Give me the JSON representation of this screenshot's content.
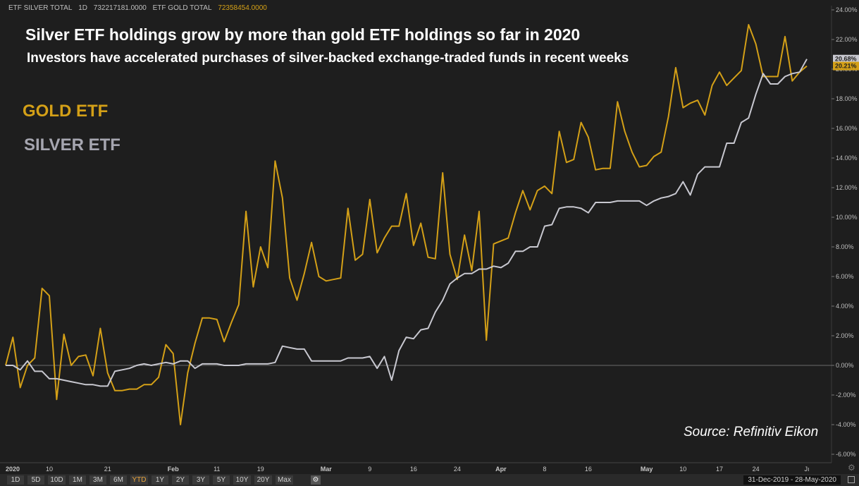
{
  "header": {
    "silver_label": "ETF SILVER TOTAL",
    "interval": "1D",
    "silver_value": "732217181.0000",
    "gold_label": "ETF GOLD TOTAL",
    "gold_value": "72358454.0000"
  },
  "chart_data": {
    "type": "line",
    "title": "Silver ETF holdings grow by more than gold ETF holdings so far in 2020",
    "subtitle": "Investors have accelerated purchases of silver-backed exchange-traded funds in recent weeks",
    "source": "Source: Refinitiv Eikon",
    "ylim": [
      -6,
      24
    ],
    "y_ticks": [
      "24.00%",
      "22.00%",
      "20.00%",
      "18.00%",
      "16.00%",
      "14.00%",
      "12.00%",
      "10.00%",
      "8.00%",
      "6.00%",
      "4.00%",
      "2.00%",
      "0.00%",
      "-2.00%",
      "-4.00%",
      "-6.00%"
    ],
    "x_ticks": [
      "2020",
      "10",
      "21",
      "Feb",
      "11",
      "19",
      "Mar",
      "9",
      "16",
      "24",
      "Apr",
      "8",
      "16",
      "May",
      "10",
      "17",
      "24",
      "Jı"
    ],
    "grid": false,
    "legend": [
      "GOLD ETF",
      "SILVER ETF"
    ],
    "last_values": {
      "silver": "20.68%",
      "gold": "20.21%"
    },
    "colors": {
      "gold": "#d4a017",
      "silver": "#c8c8d0",
      "background": "#1e1e1e"
    },
    "series": [
      {
        "name": "GOLD ETF",
        "values": [
          0.0,
          1.9,
          -1.5,
          0.0,
          0.5,
          5.2,
          4.7,
          -2.3,
          2.1,
          0.0,
          0.6,
          0.7,
          -0.7,
          2.5,
          -0.5,
          -1.7,
          -1.7,
          -1.6,
          -1.6,
          -1.3,
          -1.3,
          -0.8,
          1.4,
          0.8,
          -4.0,
          -0.5,
          1.5,
          3.2,
          3.2,
          3.1,
          1.6,
          2.9,
          4.1,
          10.4,
          5.3,
          8.0,
          6.6,
          13.8,
          11.3,
          5.9,
          4.4,
          6.2,
          8.3,
          6.0,
          5.7,
          5.8,
          5.9,
          10.6,
          7.1,
          7.5,
          11.2,
          7.6,
          8.6,
          9.4,
          9.4,
          11.6,
          8.1,
          9.6,
          7.3,
          7.2,
          13.0,
          7.5,
          5.8,
          8.8,
          6.4,
          10.4,
          1.7,
          8.2,
          8.4,
          8.6,
          10.3,
          11.8,
          10.5,
          11.8,
          12.1,
          11.6,
          15.8,
          13.7,
          13.9,
          16.4,
          15.4,
          13.2,
          13.3,
          13.3,
          17.8,
          15.8,
          14.4,
          13.4,
          13.5,
          14.1,
          14.4,
          16.8,
          20.1,
          17.4,
          17.7,
          17.9,
          16.9,
          18.9,
          19.8,
          18.9,
          19.4,
          19.9,
          23.0,
          21.7,
          19.5,
          19.5,
          19.5,
          22.2,
          19.2,
          19.8,
          20.21
        ]
      },
      {
        "name": "SILVER ETF",
        "values": [
          0.0,
          0.0,
          -0.3,
          0.3,
          -0.4,
          -0.4,
          -0.9,
          -0.9,
          -1.0,
          -1.1,
          -1.2,
          -1.3,
          -1.3,
          -1.4,
          -1.4,
          -0.4,
          -0.3,
          -0.2,
          0.0,
          0.1,
          0.0,
          0.1,
          0.2,
          0.1,
          0.3,
          0.3,
          -0.2,
          0.1,
          0.1,
          0.1,
          0.0,
          0.0,
          0.0,
          0.1,
          0.1,
          0.1,
          0.1,
          0.2,
          1.3,
          1.2,
          1.1,
          1.1,
          0.3,
          0.3,
          0.3,
          0.3,
          0.3,
          0.5,
          0.5,
          0.5,
          0.6,
          -0.2,
          0.6,
          -1.0,
          1.0,
          1.9,
          1.8,
          2.4,
          2.5,
          3.6,
          4.4,
          5.5,
          5.9,
          6.2,
          6.2,
          6.5,
          6.5,
          6.7,
          6.6,
          6.9,
          7.7,
          7.7,
          8.0,
          8.0,
          9.4,
          9.5,
          10.6,
          10.7,
          10.7,
          10.6,
          10.3,
          11.0,
          11.0,
          11.0,
          11.1,
          11.1,
          11.1,
          11.1,
          10.8,
          11.1,
          11.3,
          11.4,
          11.6,
          12.4,
          11.5,
          12.9,
          13.4,
          13.4,
          13.4,
          15.0,
          15.0,
          16.4,
          16.7,
          18.3,
          19.7,
          19.0,
          19.0,
          19.5,
          19.7,
          19.8,
          20.68
        ]
      }
    ]
  },
  "toolbar": {
    "ranges": [
      "1D",
      "5D",
      "10D",
      "1M",
      "3M",
      "6M",
      "YTD",
      "1Y",
      "2Y",
      "3Y",
      "5Y",
      "10Y",
      "20Y",
      "Max"
    ],
    "active": "YTD",
    "date_range": "31-Dec-2019 - 28-May-2020"
  }
}
